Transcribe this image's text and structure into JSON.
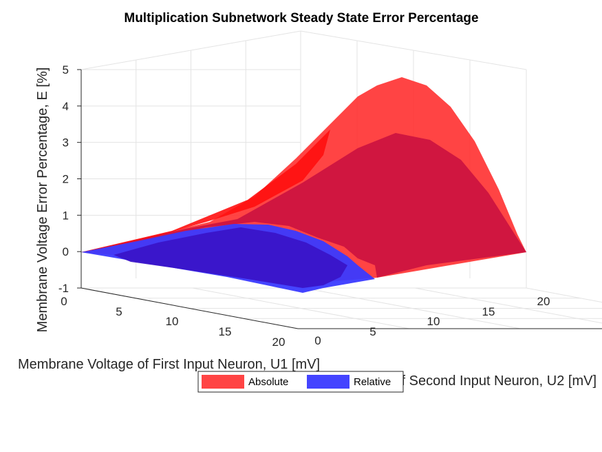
{
  "chart_data": {
    "type": "surface",
    "title": "Multiplication Subnetwork Steady State Error Percentage",
    "xlabel": "Membrane Voltage of First Input Neuron, U1 [mV]",
    "ylabel": "Membrane Voltage of Second Input Neuron, U2 [mV]",
    "zlabel": "Membrane Voltage Error Percentage, E [%]",
    "xlim": [
      0,
      20
    ],
    "ylim": [
      0,
      20
    ],
    "zlim": [
      -1,
      5
    ],
    "x_ticks": [
      "0",
      "5",
      "10",
      "15",
      "20"
    ],
    "y_ticks": [
      "0",
      "5",
      "10",
      "15",
      "20"
    ],
    "z_ticks": [
      "-1",
      "0",
      "1",
      "2",
      "3",
      "4",
      "5"
    ],
    "grid": true,
    "legend_position": "bottom-center",
    "series": [
      {
        "name": "Absolute",
        "color": "#ff2020",
        "points": [
          {
            "u1": 0,
            "u2": 0,
            "e": 0
          },
          {
            "u1": 20,
            "u2": 0,
            "e": 0
          },
          {
            "u1": 20,
            "u2": 20,
            "e": 0
          },
          {
            "u1": 0,
            "u2": 20,
            "e": 0
          },
          {
            "u1": 0,
            "u2": 10,
            "e": 4.6
          },
          {
            "u1": 5,
            "u2": 20,
            "e": 2.1
          },
          {
            "u1": 10,
            "u2": 20,
            "e": 1.1
          },
          {
            "u1": 20,
            "u2": 10,
            "e": 2.7
          }
        ],
        "peak": {
          "u1": 0,
          "u2": 11,
          "e": 4.8
        }
      },
      {
        "name": "Relative",
        "color": "#2020ff",
        "points": [
          {
            "u1": 0,
            "u2": 0,
            "e": 0
          },
          {
            "u1": 20,
            "u2": 0,
            "e": -0.6
          },
          {
            "u1": 10,
            "u2": 0,
            "e": 0.3
          },
          {
            "u1": 20,
            "u2": 5,
            "e": -0.4
          },
          {
            "u1": 10,
            "u2": 5,
            "e": 0.2
          }
        ],
        "min": {
          "u1": 20,
          "u2": 0,
          "e": -0.6
        }
      }
    ]
  }
}
